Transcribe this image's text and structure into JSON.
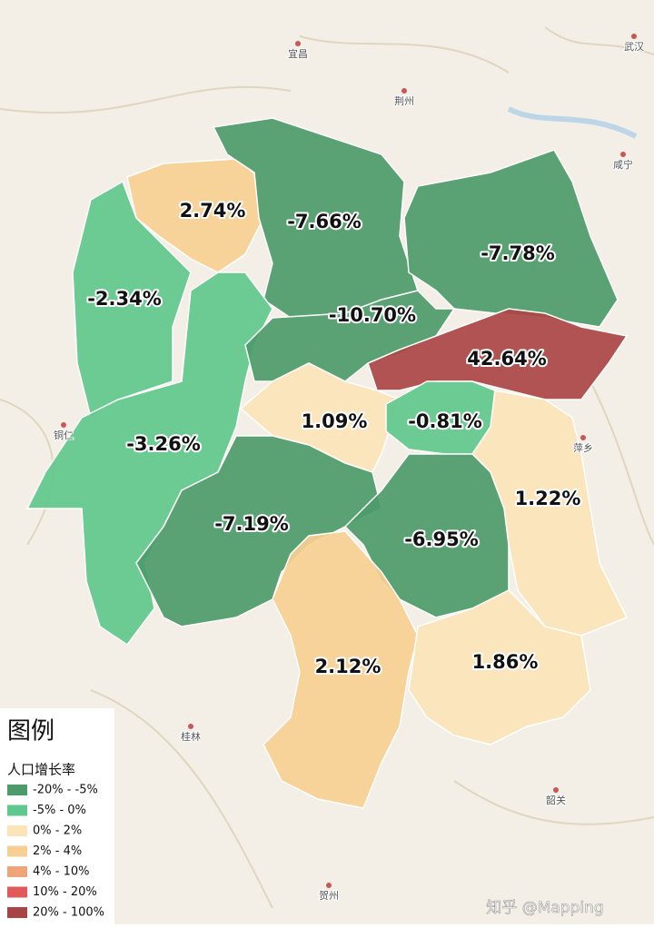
{
  "map": {
    "regions": [
      {
        "label": "2.74%",
        "color": "#f7cf93"
      },
      {
        "label": "-7.66%",
        "color": "#4d9b6a"
      },
      {
        "label": "-7.78%",
        "color": "#4d9b6a"
      },
      {
        "label": "-2.34%",
        "color": "#5fc88c"
      },
      {
        "label": "-3.26%",
        "color": "#5fc88c"
      },
      {
        "label": "-10.70%",
        "color": "#4d9b6a"
      },
      {
        "label": "42.64%",
        "color": "#ab4545"
      },
      {
        "label": "1.09%",
        "color": "#fbe4b8"
      },
      {
        "label": "-0.81%",
        "color": "#5fc88c"
      },
      {
        "label": "1.22%",
        "color": "#fbe4b8"
      },
      {
        "label": "-7.19%",
        "color": "#4d9b6a"
      },
      {
        "label": "-6.95%",
        "color": "#4d9b6a"
      },
      {
        "label": "2.12%",
        "color": "#f7cf93"
      },
      {
        "label": "1.86%",
        "color": "#fbe4b8"
      }
    ],
    "cities": [
      "武汉",
      "宜昌",
      "荆州",
      "咸宁",
      "铜仁",
      "萍乡",
      "桂林",
      "贺州",
      "韶关"
    ],
    "legend": {
      "title": "图例",
      "subtitle": "人口增长率",
      "items": [
        {
          "label": "-20% - -5%",
          "color": "#4d9b6a"
        },
        {
          "label": "-5% - 0%",
          "color": "#5fc88c"
        },
        {
          "label": "0% - 2%",
          "color": "#fbe4b8"
        },
        {
          "label": "2% - 4%",
          "color": "#f7cf93"
        },
        {
          "label": "4% - 10%",
          "color": "#f0a47a"
        },
        {
          "label": "10% - 20%",
          "color": "#e05a5a"
        },
        {
          "label": "20% - 100%",
          "color": "#a84444"
        }
      ]
    },
    "watermark": "知乎 @Mapping"
  }
}
